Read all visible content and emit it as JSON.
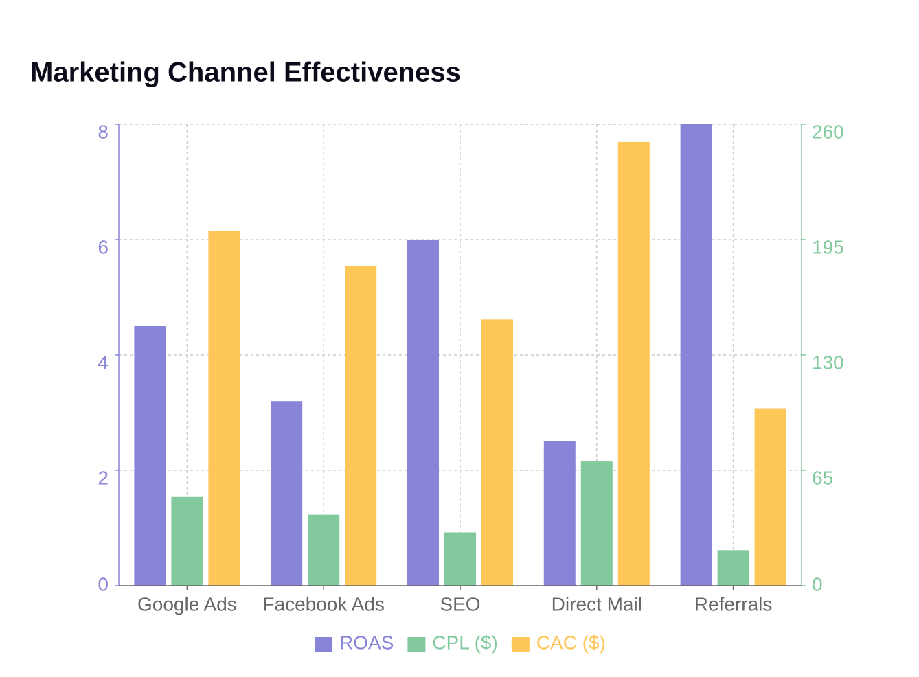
{
  "chart_data": {
    "type": "bar",
    "title": "Marketing Channel Effectiveness",
    "categories": [
      "Google Ads",
      "Facebook Ads",
      "SEO",
      "Direct Mail",
      "Referrals"
    ],
    "series": [
      {
        "name": "ROAS",
        "color": "#8884d8",
        "axis": "y",
        "values": [
          4.5,
          3.2,
          6,
          2.5,
          8
        ]
      },
      {
        "name": "CPL ($)",
        "color": "#82ca9d",
        "axis": "y2",
        "values": [
          50,
          40,
          30,
          70,
          20
        ]
      },
      {
        "name": "CAC ($)",
        "color": "#ffc658",
        "axis": "y2",
        "values": [
          200,
          180,
          150,
          250,
          100
        ]
      }
    ],
    "ylim": [
      0,
      8
    ],
    "yticks": [
      0,
      2,
      4,
      6,
      8
    ],
    "y_color": "#8884d8",
    "y2lim": [
      0,
      260
    ],
    "y2ticks": [
      0,
      65,
      130,
      195,
      260
    ],
    "y2_color": "#82ca9d",
    "grid": true,
    "legend": "bottom"
  }
}
